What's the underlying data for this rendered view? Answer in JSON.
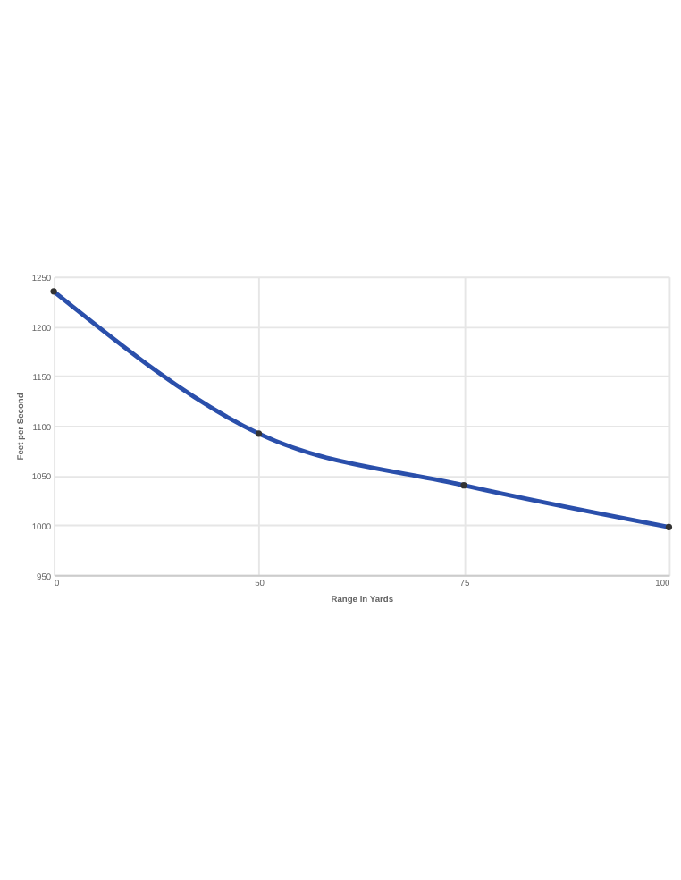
{
  "chart_data": {
    "type": "line",
    "xlabel": "Range in Yards",
    "ylabel": "Feet per Second",
    "categories": [
      "0",
      "50",
      "75",
      "100"
    ],
    "series": [
      {
        "color": "#2a4fab",
        "values": [
          1235,
          1092,
          1040,
          998
        ]
      }
    ],
    "ylim": [
      950,
      1250
    ],
    "yticks": [
      950,
      1000,
      1050,
      1100,
      1150,
      1200,
      1250
    ],
    "grid": true,
    "marker": "circle"
  }
}
